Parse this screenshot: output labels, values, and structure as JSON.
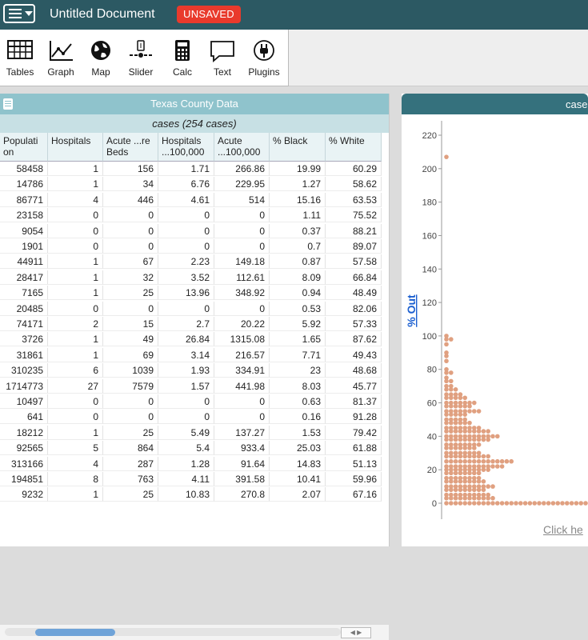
{
  "header": {
    "title": "Untitled Document",
    "badge": "UNSAVED"
  },
  "toolbar": {
    "items": [
      {
        "label": "Tables",
        "icon": "table-icon"
      },
      {
        "label": "Graph",
        "icon": "graph-icon"
      },
      {
        "label": "Map",
        "icon": "globe-icon"
      },
      {
        "label": "Slider",
        "icon": "slider-icon"
      },
      {
        "label": "Calc",
        "icon": "calculator-icon"
      },
      {
        "label": "Text",
        "icon": "speech-bubble-icon"
      },
      {
        "label": "Plugins",
        "icon": "plug-icon"
      }
    ]
  },
  "table": {
    "title": "Texas County Data",
    "collection": "cases (254 cases)",
    "columns": [
      "Populati on",
      "Hospitals",
      "Acute ...re Beds",
      "Hospitals ...100,000",
      "Acute ...100,000",
      "% Black",
      "% White"
    ],
    "rows": [
      [
        "58458",
        "1",
        "156",
        "1.71",
        "266.86",
        "19.99",
        "60.29"
      ],
      [
        "14786",
        "1",
        "34",
        "6.76",
        "229.95",
        "1.27",
        "58.62"
      ],
      [
        "86771",
        "4",
        "446",
        "4.61",
        "514",
        "15.16",
        "63.53"
      ],
      [
        "23158",
        "0",
        "0",
        "0",
        "0",
        "1.11",
        "75.52"
      ],
      [
        "9054",
        "0",
        "0",
        "0",
        "0",
        "0.37",
        "88.21"
      ],
      [
        "1901",
        "0",
        "0",
        "0",
        "0",
        "0.7",
        "89.07"
      ],
      [
        "44911",
        "1",
        "67",
        "2.23",
        "149.18",
        "0.87",
        "57.58"
      ],
      [
        "28417",
        "1",
        "32",
        "3.52",
        "112.61",
        "8.09",
        "66.84"
      ],
      [
        "7165",
        "1",
        "25",
        "13.96",
        "348.92",
        "0.94",
        "48.49"
      ],
      [
        "20485",
        "0",
        "0",
        "0",
        "0",
        "0.53",
        "82.06"
      ],
      [
        "74171",
        "2",
        "15",
        "2.7",
        "20.22",
        "5.92",
        "57.33"
      ],
      [
        "3726",
        "1",
        "49",
        "26.84",
        "1315.08",
        "1.65",
        "87.62"
      ],
      [
        "31861",
        "1",
        "69",
        "3.14",
        "216.57",
        "7.71",
        "49.43"
      ],
      [
        "310235",
        "6",
        "1039",
        "1.93",
        "334.91",
        "23",
        "48.68"
      ],
      [
        "1714773",
        "27",
        "7579",
        "1.57",
        "441.98",
        "8.03",
        "45.77"
      ],
      [
        "10497",
        "0",
        "0",
        "0",
        "0",
        "0.63",
        "81.37"
      ],
      [
        "641",
        "0",
        "0",
        "0",
        "0",
        "0.16",
        "91.28"
      ],
      [
        "18212",
        "1",
        "25",
        "5.49",
        "137.27",
        "1.53",
        "79.42"
      ],
      [
        "92565",
        "5",
        "864",
        "5.4",
        "933.4",
        "25.03",
        "61.88"
      ],
      [
        "313166",
        "4",
        "287",
        "1.28",
        "91.64",
        "14.83",
        "51.13"
      ],
      [
        "194851",
        "8",
        "763",
        "4.11",
        "391.58",
        "10.41",
        "59.96"
      ],
      [
        "9232",
        "1",
        "25",
        "10.83",
        "270.8",
        "2.07",
        "67.16"
      ]
    ]
  },
  "graph": {
    "title": "case",
    "ylabel": "% Out",
    "footer": "Click he",
    "point_color": "#e0a080",
    "yticks": [
      "0",
      "20",
      "40",
      "60",
      "80",
      "100",
      "120",
      "140",
      "160",
      "180",
      "200",
      "220"
    ],
    "ylim": [
      0,
      225
    ]
  }
}
